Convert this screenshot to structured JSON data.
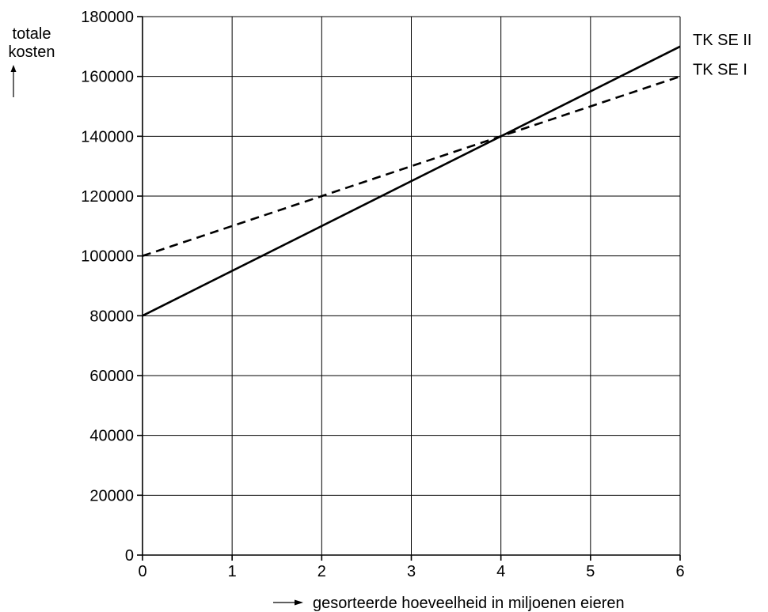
{
  "chart_data": {
    "type": "line",
    "title": "",
    "xlabel": "gesorteerde hoeveelheid in miljoenen eieren",
    "ylabel": "totale kosten",
    "xlim": [
      0,
      6
    ],
    "ylim": [
      0,
      180000
    ],
    "xticks": [
      0,
      1,
      2,
      3,
      4,
      5,
      6
    ],
    "yticks": [
      0,
      20000,
      40000,
      60000,
      80000,
      100000,
      120000,
      140000,
      160000,
      180000
    ],
    "grid": true,
    "legend": "none (series labelled at right end of lines)",
    "series": [
      {
        "name": "TK SE II",
        "style": "solid",
        "x": [
          0,
          6
        ],
        "y": [
          80000,
          170000
        ]
      },
      {
        "name": "TK SE I",
        "style": "dashed",
        "x": [
          0,
          6
        ],
        "y": [
          100000,
          160000
        ]
      }
    ]
  },
  "labels": {
    "ylabel_line1": "totale",
    "ylabel_line2": "kosten"
  }
}
